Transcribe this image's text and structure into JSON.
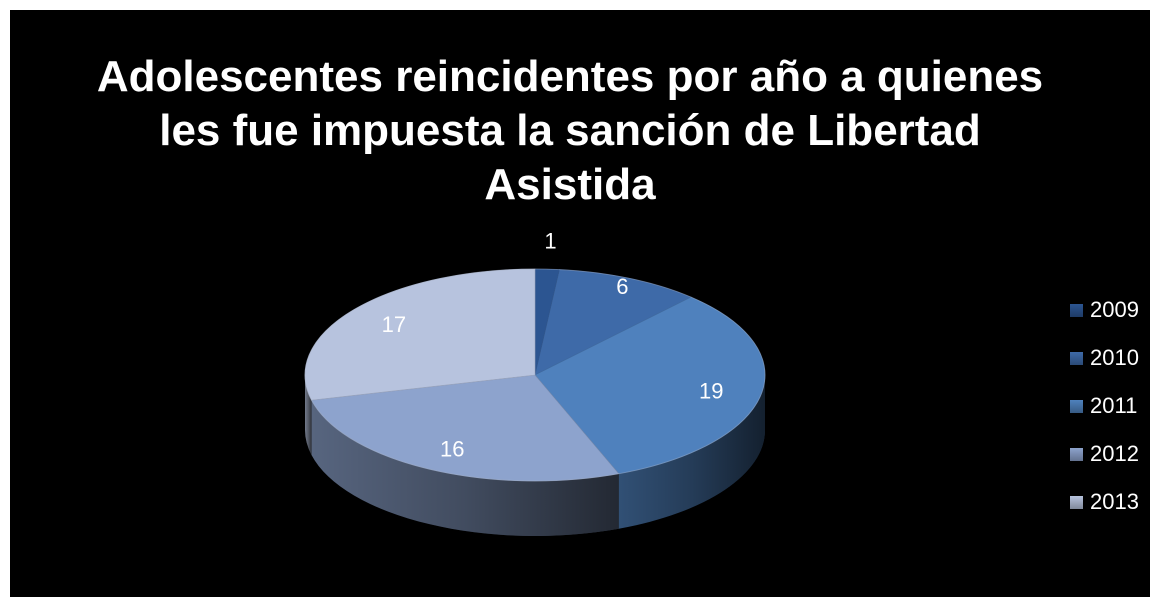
{
  "chart_data": {
    "type": "pie",
    "title": "Adolescentes reincidentes por año a quienes les fue impuesta la sanción de Libertad Asistida",
    "categories": [
      "2009",
      "2010",
      "2011",
      "2012",
      "2013"
    ],
    "values": [
      1,
      6,
      19,
      16,
      17
    ],
    "colors": [
      "#2c5591",
      "#3e6aa8",
      "#4f81bd",
      "#8da3cd",
      "#b7c3de"
    ],
    "legend": "right",
    "three_d": true
  }
}
